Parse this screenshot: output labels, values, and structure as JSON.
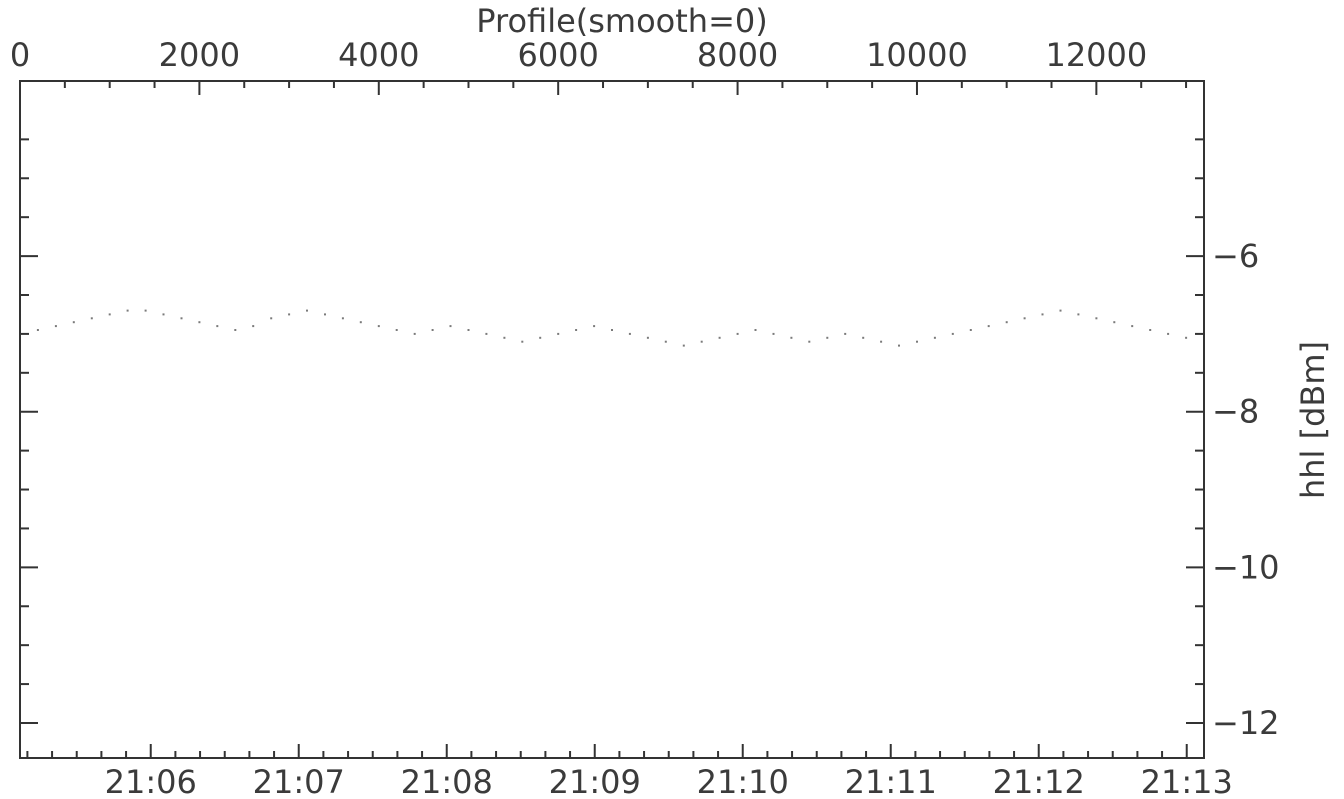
{
  "chart_data": {
    "type": "scatter",
    "title": "Profile(smooth=0)",
    "xlabel_top": "",
    "xlabel_bottom": "",
    "ylabel": "hhl [dBm]",
    "x_top_range": [
      0,
      13200
    ],
    "x_top_ticks": [
      {
        "value": 0,
        "label": "0"
      },
      {
        "value": 2000,
        "label": "2000"
      },
      {
        "value": 4000,
        "label": "4000"
      },
      {
        "value": 6000,
        "label": "6000"
      },
      {
        "value": 8000,
        "label": "8000"
      },
      {
        "value": 10000,
        "label": "10000"
      },
      {
        "value": 12000,
        "label": "12000"
      }
    ],
    "x_bottom_range": [
      "21:05:07",
      "21:13:07"
    ],
    "x_bottom_ticks": [
      "21:06",
      "21:07",
      "21:08",
      "21:09",
      "21:10",
      "21:11",
      "21:12",
      "21:13"
    ],
    "ylim": [
      -12.45,
      -3.75
    ],
    "y_ticks": [
      {
        "value": -6,
        "label": "−6"
      },
      {
        "value": -8,
        "label": "−8"
      },
      {
        "value": -10,
        "label": "−10"
      },
      {
        "value": -12,
        "label": "−12"
      }
    ],
    "grid": false,
    "point_color": "#7a7a7a",
    "series": [
      {
        "x": [
          0,
          200,
          400,
          600,
          800,
          1000,
          1200,
          1400,
          1600,
          1800,
          2000,
          2200,
          2400,
          2600,
          2800,
          3000,
          3200,
          3400,
          3600,
          3800,
          4000,
          4200,
          4400,
          4600,
          4800,
          5000,
          5200,
          5400,
          5600,
          5800,
          6000,
          6200,
          6400,
          6600,
          6800,
          7000,
          7200,
          7400,
          7600,
          7800,
          8000,
          8200,
          8400,
          8600,
          8800,
          9000,
          9200,
          9400,
          9600,
          9800,
          10000,
          10200,
          10400,
          10600,
          10800,
          11000,
          11200,
          11400,
          11600,
          11800,
          12000,
          12200,
          12400,
          12600,
          12800,
          13000,
          13200
        ],
        "y": [
          -7.0,
          -6.95,
          -6.9,
          -6.85,
          -6.8,
          -6.75,
          -6.7,
          -6.7,
          -6.75,
          -6.8,
          -6.85,
          -6.9,
          -6.95,
          -6.9,
          -6.8,
          -6.75,
          -6.7,
          -6.75,
          -6.8,
          -6.85,
          -6.9,
          -6.95,
          -7.0,
          -6.95,
          -6.9,
          -6.95,
          -7.0,
          -7.05,
          -7.1,
          -7.05,
          -7.0,
          -6.95,
          -6.9,
          -6.95,
          -7.0,
          -7.05,
          -7.1,
          -7.15,
          -7.1,
          -7.05,
          -7.0,
          -6.95,
          -7.0,
          -7.05,
          -7.1,
          -7.05,
          -7.0,
          -7.05,
          -7.1,
          -7.15,
          -7.1,
          -7.05,
          -7.0,
          -6.95,
          -6.9,
          -6.85,
          -6.8,
          -6.75,
          -6.7,
          -6.75,
          -6.8,
          -6.85,
          -6.9,
          -6.95,
          -7.0,
          -7.05,
          -7.0
        ]
      }
    ]
  }
}
